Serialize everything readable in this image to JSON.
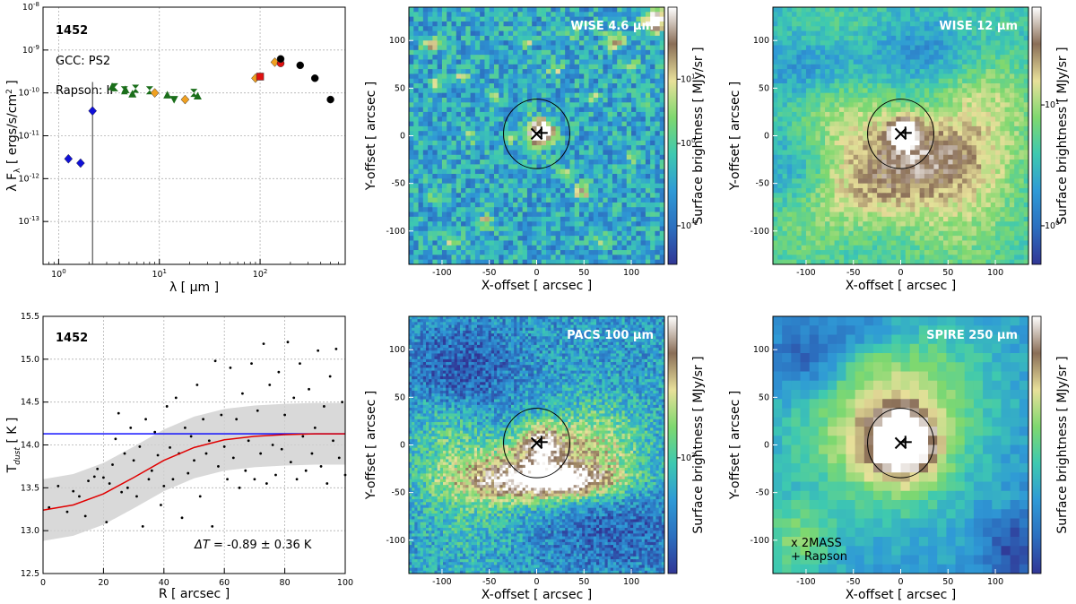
{
  "chart_data": [
    {
      "type": "scatter",
      "panel": "sed",
      "annotations": {
        "id": "1452",
        "gcc": "GCC: PS2",
        "rapson": "Rapson:  II"
      },
      "xlabel": "λ  [ μm ]",
      "ylabel": "λ F",
      "ylabel_sub": "λ",
      "ylabel_units": "  [ ergs/s/cm",
      "ylabel_sup": "2",
      "ylabel_end": " ]",
      "xscale": "log",
      "yscale": "log",
      "xlim": [
        0.7,
        700
      ],
      "ylim": [
        1e-14,
        1e-08
      ],
      "x_ticks": [
        {
          "v": 1,
          "b": "10",
          "e": "0"
        },
        {
          "v": 10,
          "b": "10",
          "e": "1"
        },
        {
          "v": 100,
          "b": "10",
          "e": "2"
        }
      ],
      "y_ticks": [
        {
          "v": 1e-13,
          "b": "10",
          "e": "-13"
        },
        {
          "v": 1e-12,
          "b": "10",
          "e": "-12"
        },
        {
          "v": 1e-11,
          "b": "10",
          "e": "-11"
        },
        {
          "v": 1e-10,
          "b": "10",
          "e": "-10"
        },
        {
          "v": 1e-09,
          "b": "10",
          "e": "-9"
        },
        {
          "v": 1e-08,
          "b": "10",
          "e": "-8"
        }
      ],
      "grid": true,
      "series": [
        {
          "marker": "diamond",
          "color": "#1010d8",
          "points": [
            [
              1.25,
              2.9e-12
            ],
            [
              1.65,
              2.3e-12
            ],
            [
              2.17,
              3.8e-11
            ]
          ]
        },
        {
          "marker": "hourglass",
          "color": "#1a6e1a",
          "points": [
            [
              3.6,
              1.35e-10
            ],
            [
              4.5,
              1.15e-10
            ],
            [
              5.8,
              1.25e-10
            ],
            [
              8.0,
              1.15e-10
            ],
            [
              22,
              1e-10
            ]
          ]
        },
        {
          "marker": "triangle-up",
          "color": "#1a6e1a",
          "points": [
            [
              3.4,
              1.4e-10
            ],
            [
              4.6,
              1.2e-10
            ],
            [
              5.4,
              9.5e-11
            ],
            [
              12,
              9e-11
            ],
            [
              24,
              8.5e-11
            ]
          ]
        },
        {
          "marker": "triangle-down",
          "color": "#1a6e1a",
          "points": [
            [
              14,
              7e-11
            ]
          ]
        },
        {
          "marker": "diamond",
          "color": "#f0a020",
          "points": [
            [
              9,
              1e-10
            ],
            [
              18,
              7e-11
            ],
            [
              90,
              2.2e-10
            ],
            [
              140,
              5.2e-10
            ]
          ]
        },
        {
          "marker": "square",
          "color": "#e01010",
          "points": [
            [
              100,
              2.4e-10
            ]
          ]
        },
        {
          "marker": "circle",
          "color": "#e01010",
          "points": [
            [
              160,
              4.9e-10
            ]
          ]
        },
        {
          "marker": "circle",
          "color": "#000000",
          "points": [
            [
              160,
              6.2e-10
            ],
            [
              250,
              4.4e-10
            ],
            [
              350,
              2.2e-10
            ],
            [
              500,
              7e-11
            ]
          ]
        }
      ],
      "errorbars": [
        {
          "x": 2.17,
          "y_low": 1e-14,
          "y_high": 1.8e-10
        }
      ]
    },
    {
      "type": "scatter",
      "panel": "tdust",
      "annotations": {
        "id": "1452",
        "delta_prefix": "ΔT",
        "delta_value": " = -0.89 ± 0.36 K"
      },
      "xlabel": "R [ arcsec ]",
      "ylabel": "T",
      "ylabel_sub": "dust",
      "ylabel_end": " [ K ]",
      "xlim": [
        0,
        100
      ],
      "ylim": [
        12.5,
        15.5
      ],
      "x_ticks": [
        0,
        20,
        40,
        60,
        80,
        100
      ],
      "y_ticks": [
        "12.5",
        "13.0",
        "13.5",
        "14.0",
        "14.5",
        "15.0",
        "15.5"
      ],
      "grid": true,
      "hline": 14.13,
      "fit_curve": [
        [
          0,
          13.24
        ],
        [
          10,
          13.3
        ],
        [
          20,
          13.43
        ],
        [
          30,
          13.62
        ],
        [
          40,
          13.82
        ],
        [
          50,
          13.97
        ],
        [
          60,
          14.06
        ],
        [
          70,
          14.1
        ],
        [
          80,
          14.12
        ],
        [
          90,
          14.13
        ],
        [
          100,
          14.13
        ]
      ],
      "band_halfwidth": 0.36,
      "points": [
        [
          2,
          13.27
        ],
        [
          5,
          13.52
        ],
        [
          8,
          13.22
        ],
        [
          10,
          13.46
        ],
        [
          12,
          13.4
        ],
        [
          14,
          13.17
        ],
        [
          15,
          13.58
        ],
        [
          17,
          13.63
        ],
        [
          18,
          13.72
        ],
        [
          20,
          13.62
        ],
        [
          21,
          13.1
        ],
        [
          22,
          13.55
        ],
        [
          23,
          13.77
        ],
        [
          24,
          14.07
        ],
        [
          25,
          14.37
        ],
        [
          26,
          13.45
        ],
        [
          27,
          13.9
        ],
        [
          28,
          13.5
        ],
        [
          29,
          14.2
        ],
        [
          30,
          13.82
        ],
        [
          31,
          13.4
        ],
        [
          32,
          13.98
        ],
        [
          33,
          13.05
        ],
        [
          34,
          14.3
        ],
        [
          35,
          13.6
        ],
        [
          36,
          13.7
        ],
        [
          37,
          14.15
        ],
        [
          38,
          13.88
        ],
        [
          39,
          13.3
        ],
        [
          40,
          13.52
        ],
        [
          41,
          14.45
        ],
        [
          42,
          13.97
        ],
        [
          43,
          13.6
        ],
        [
          44,
          14.55
        ],
        [
          45,
          13.9
        ],
        [
          46,
          13.15
        ],
        [
          47,
          14.2
        ],
        [
          48,
          13.67
        ],
        [
          49,
          14.1
        ],
        [
          50,
          13.82
        ],
        [
          51,
          14.7
        ],
        [
          52,
          13.4
        ],
        [
          53,
          14.3
        ],
        [
          54,
          13.9
        ],
        [
          55,
          14.05
        ],
        [
          56,
          13.05
        ],
        [
          57,
          14.98
        ],
        [
          58,
          13.75
        ],
        [
          59,
          14.35
        ],
        [
          60,
          13.98
        ],
        [
          61,
          13.6
        ],
        [
          62,
          14.9
        ],
        [
          63,
          13.85
        ],
        [
          64,
          14.3
        ],
        [
          65,
          13.5
        ],
        [
          66,
          14.6
        ],
        [
          67,
          13.7
        ],
        [
          68,
          14.05
        ],
        [
          69,
          14.95
        ],
        [
          70,
          13.6
        ],
        [
          71,
          14.4
        ],
        [
          72,
          13.9
        ],
        [
          73,
          15.18
        ],
        [
          74,
          13.55
        ],
        [
          75,
          14.7
        ],
        [
          76,
          14.0
        ],
        [
          77,
          13.65
        ],
        [
          78,
          14.85
        ],
        [
          79,
          13.95
        ],
        [
          80,
          14.35
        ],
        [
          81,
          15.2
        ],
        [
          82,
          13.8
        ],
        [
          83,
          14.55
        ],
        [
          84,
          13.6
        ],
        [
          85,
          14.95
        ],
        [
          86,
          14.1
        ],
        [
          87,
          13.7
        ],
        [
          88,
          14.65
        ],
        [
          89,
          13.9
        ],
        [
          90,
          14.2
        ],
        [
          91,
          15.1
        ],
        [
          92,
          13.75
        ],
        [
          93,
          14.45
        ],
        [
          94,
          13.55
        ],
        [
          95,
          14.8
        ],
        [
          96,
          14.05
        ],
        [
          97,
          15.12
        ],
        [
          98,
          13.85
        ],
        [
          99,
          14.5
        ],
        [
          100,
          13.65
        ]
      ]
    },
    {
      "type": "heatmap",
      "panel": "wise46",
      "band_label": "WISE 4.6 μm",
      "xlabel": "X-offset  [ arcsec ]",
      "ylabel": "Y-offset  [ arcsec ]",
      "cbar_label": "Surface brightness  [ MJy/sr ]",
      "cbar_ticks": [
        {
          "b": "10",
          "e": "1",
          "f": 0.72
        },
        {
          "b": "10",
          "e": "0",
          "f": 0.47
        },
        {
          "b": "10",
          "e": "-1",
          "f": 0.15
        }
      ],
      "circle_radius": 35,
      "cmap": [
        "#313695",
        "#2c6fbf",
        "#2f9ad6",
        "#3ec9b0",
        "#7fd86f",
        "#e8e09a",
        "#8a6e57",
        "#ffffff"
      ],
      "xlim": [
        -135,
        135
      ],
      "ylim": [
        -135,
        135
      ],
      "x_ticks": [
        -100,
        -50,
        0,
        50,
        100
      ],
      "y_ticks": [
        -100,
        -50,
        0,
        50,
        100
      ]
    },
    {
      "type": "heatmap",
      "panel": "wise12",
      "band_label": "WISE 12 μm",
      "xlabel": "X-offset  [ arcsec ]",
      "ylabel": "Y-offset  [ arcsec ]",
      "cbar_label": "Surface brightness  [ MJy/sr ]",
      "cbar_ticks": [
        {
          "b": "10",
          "e": "1",
          "f": 0.62
        },
        {
          "b": "10",
          "e": "0",
          "f": 0.15
        }
      ],
      "circle_radius": 35,
      "cmap": [
        "#313695",
        "#2c6fbf",
        "#2f9ad6",
        "#3ec9b0",
        "#7fd86f",
        "#e8e09a",
        "#8a6e57",
        "#ffffff"
      ],
      "xlim": [
        -135,
        135
      ],
      "ylim": [
        -135,
        135
      ],
      "x_ticks": [
        -100,
        -50,
        0,
        50,
        100
      ],
      "y_ticks": [
        -100,
        -50,
        0,
        50,
        100
      ]
    },
    {
      "type": "heatmap",
      "panel": "pacs100",
      "band_label": "PACS 100 μm",
      "xlabel": "X-offset  [ arcsec ]",
      "ylabel": "Y-offset  [ arcsec ]",
      "cbar_label": "Surface brightness  [ MJy/sr ]",
      "cbar_ticks": [
        {
          "b": "10",
          "e": "2",
          "f": 0.45
        }
      ],
      "circle_radius": 35,
      "cmap": [
        "#313695",
        "#2c6fbf",
        "#2f9ad6",
        "#3ec9b0",
        "#7fd86f",
        "#e8e09a",
        "#8a6e57",
        "#ffffff"
      ],
      "xlim": [
        -135,
        135
      ],
      "ylim": [
        -135,
        135
      ],
      "x_ticks": [
        -100,
        -50,
        0,
        50,
        100
      ],
      "y_ticks": [
        -100,
        -50,
        0,
        50,
        100
      ]
    },
    {
      "type": "heatmap",
      "panel": "spire250",
      "band_label": "SPIRE 250 μm",
      "xlabel": "X-offset  [ arcsec ]",
      "ylabel": "Y-offset  [ arcsec ]",
      "cbar_label": "Surface brightness  [ MJy/sr ]",
      "cbar_ticks": [],
      "legend": [
        "x 2MASS",
        "+ Rapson"
      ],
      "legend_placement": "bottom-left",
      "circle_radius": 35,
      "cmap": [
        "#313695",
        "#2c6fbf",
        "#2f9ad6",
        "#3ec9b0",
        "#7fd86f",
        "#e8e09a",
        "#8a6e57",
        "#ffffff"
      ],
      "xlim": [
        -135,
        135
      ],
      "ylim": [
        -135,
        135
      ],
      "x_ticks": [
        -100,
        -50,
        0,
        50,
        100
      ],
      "y_ticks": [
        -100,
        -50,
        0,
        50,
        100
      ]
    }
  ]
}
